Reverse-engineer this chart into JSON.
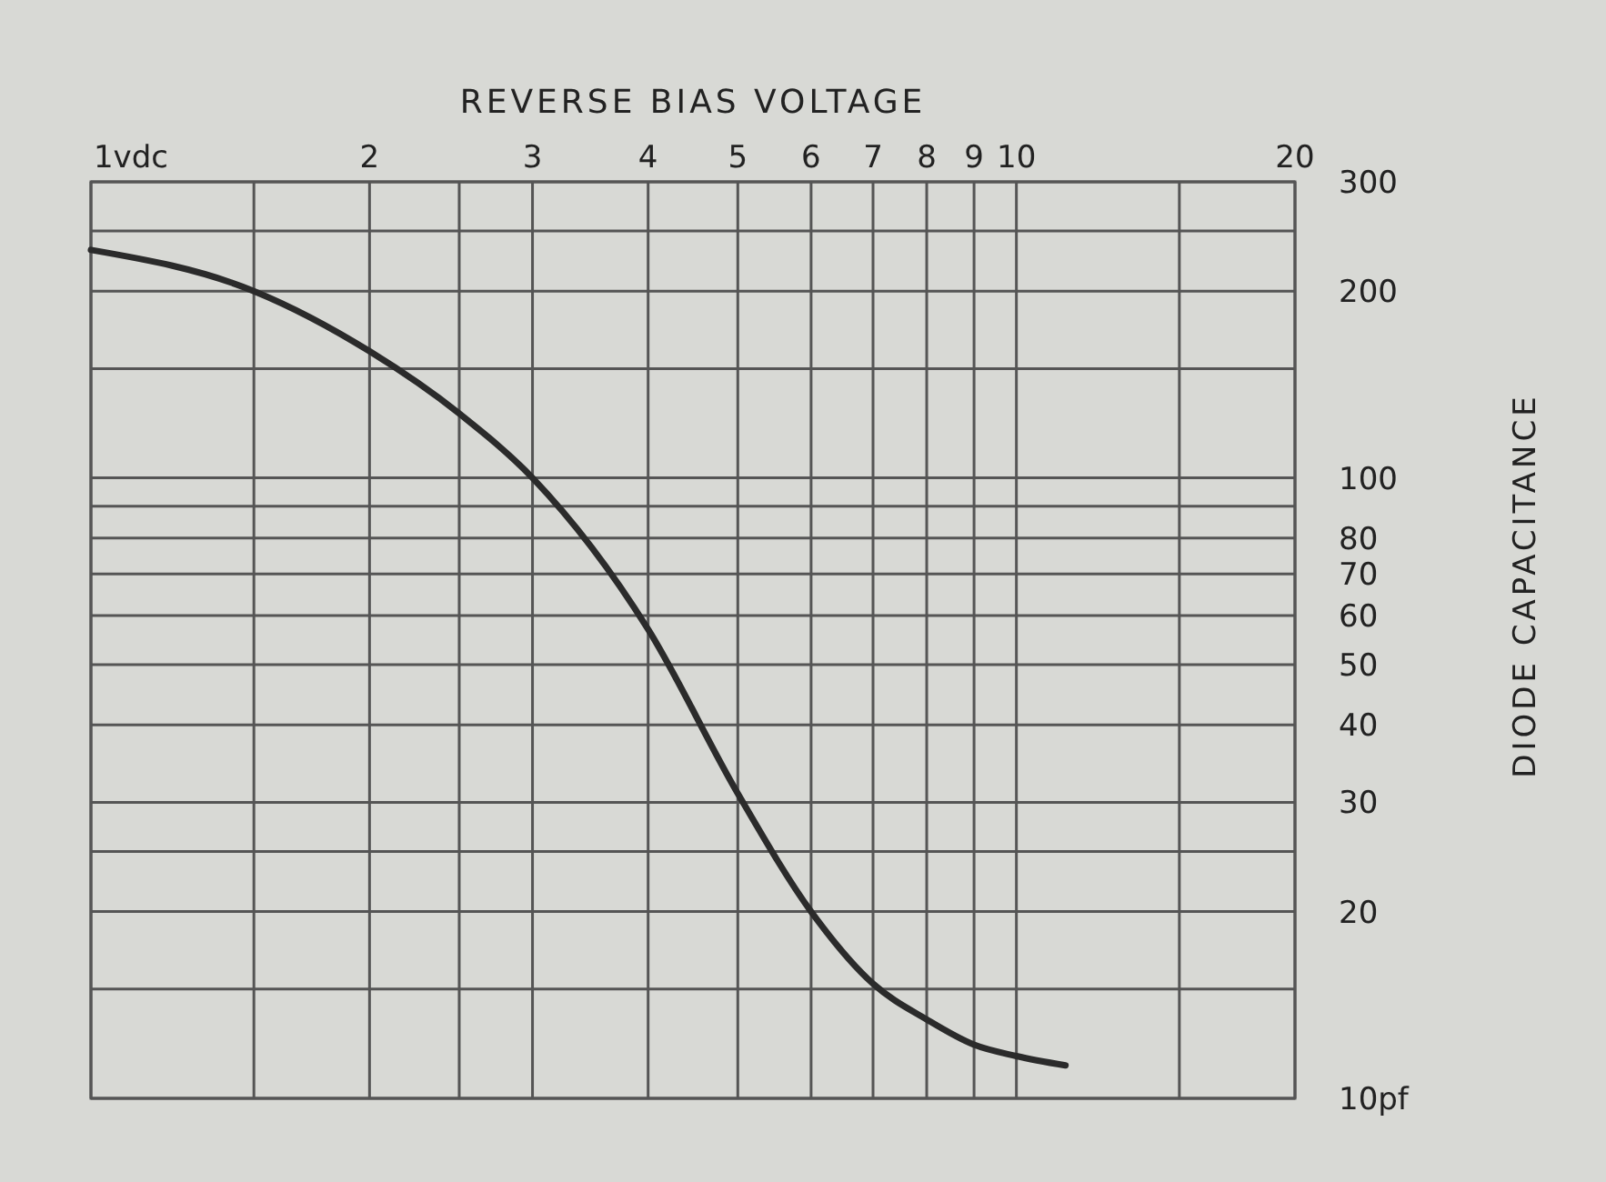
{
  "chart_data": {
    "type": "line",
    "title": "REVERSE BIAS VOLTAGE",
    "ylabel": "DIODE CAPACITANCE",
    "log": "xy",
    "grid": true,
    "x": [
      1,
      1.5,
      2,
      2.5,
      3,
      4,
      5,
      6,
      7,
      8,
      9,
      10,
      11.3
    ],
    "series": [
      {
        "color": "#2b2b2b",
        "values": [
          233,
          200,
          160,
          127,
          100,
          57,
          31,
          20,
          15.3,
          13.4,
          12.2,
          11.7,
          11.3
        ]
      }
    ],
    "xlim": [
      1,
      20
    ],
    "ylim": [
      10,
      300
    ],
    "xticks": [
      {
        "value": 1,
        "label": "1vdc"
      },
      {
        "value": 1.5,
        "label": null
      },
      2,
      {
        "value": 2.5,
        "label": null
      },
      3,
      4,
      5,
      6,
      7,
      8,
      9,
      10,
      {
        "value": 15,
        "label": null
      },
      20
    ],
    "yticks": [
      {
        "value": 10,
        "label": "10pf"
      },
      {
        "value": 15,
        "label": null
      },
      20,
      {
        "value": 25,
        "label": null
      },
      30,
      40,
      50,
      60,
      70,
      80,
      {
        "value": 90,
        "label": null
      },
      100,
      {
        "value": 150,
        "label": null
      },
      200,
      {
        "value": 250,
        "label": null
      },
      300
    ],
    "marker": "none",
    "line_style": "solid"
  }
}
